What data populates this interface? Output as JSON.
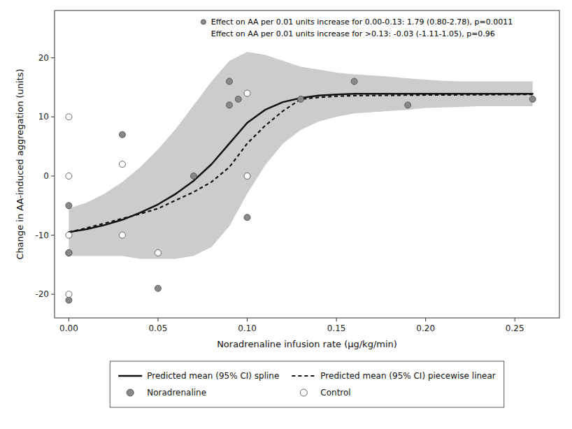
{
  "chart_data": {
    "type": "line",
    "x_label": "Noradrenaline infusion rate (μg/kg/min)",
    "y_label": "Change in AA-induced aggregation (units)",
    "annotations": [
      "Effect on AA per 0.01 units increase for 0.00-0.13: 1.79 (0.80-2.78), p=0.0011",
      "Effect on AA per 0.01 units increase for >0.13: -0.03 (-1.11-1.05), p=0.96"
    ],
    "xlim": [
      -0.008,
      0.275
    ],
    "ylim": [
      -24,
      28
    ],
    "xticks": [
      {
        "value": 0.0,
        "label": "0.00"
      },
      0.05,
      {
        "value": 0.1,
        "label": "0.10"
      },
      0.15,
      {
        "value": 0.2,
        "label": "0.20"
      },
      0.25
    ],
    "yticks": [
      -20,
      -10,
      0,
      10,
      20
    ],
    "grid": false,
    "legend": "bottom",
    "series": [
      {
        "type": "area",
        "color": "#cccccc",
        "x": [
          0.0,
          0.01,
          0.02,
          0.03,
          0.04,
          0.05,
          0.06,
          0.07,
          0.08,
          0.09,
          0.1,
          0.11,
          0.12,
          0.13,
          0.14,
          0.15,
          0.16,
          0.17,
          0.18,
          0.19,
          0.2,
          0.21,
          0.22,
          0.23,
          0.24,
          0.25,
          0.26
        ],
        "lower": [
          -13.5,
          -13.5,
          -13.5,
          -13.5,
          -14.0,
          -14.0,
          -14.0,
          -13.5,
          -12.0,
          -8.5,
          -3.0,
          1.8,
          5.5,
          7.8,
          9.2,
          10.0,
          10.6,
          10.8,
          11.0,
          11.2,
          11.5,
          11.6,
          11.7,
          11.8,
          11.8,
          11.8,
          11.8
        ],
        "upper": [
          -5.5,
          -4.5,
          -3.0,
          -1.0,
          1.5,
          4.5,
          8.0,
          12.0,
          16.0,
          19.5,
          21.0,
          20.5,
          19.5,
          18.5,
          18.0,
          17.5,
          17.2,
          17.0,
          16.8,
          16.5,
          16.3,
          16.1,
          16.0,
          16.0,
          16.0,
          16.0,
          16.0
        ]
      },
      {
        "name": "Predicted mean (95% CI) spline",
        "type": "line",
        "line_style": "solid",
        "color": "#111111",
        "x": [
          0.0,
          0.01,
          0.02,
          0.03,
          0.04,
          0.05,
          0.06,
          0.07,
          0.08,
          0.09,
          0.1,
          0.11,
          0.12,
          0.13,
          0.14,
          0.15,
          0.16,
          0.17,
          0.18,
          0.19,
          0.2,
          0.21,
          0.22,
          0.23,
          0.24,
          0.25,
          0.26
        ],
        "values": [
          -9.5,
          -9.0,
          -8.3,
          -7.4,
          -6.2,
          -4.8,
          -3.0,
          -0.8,
          2.0,
          5.5,
          9.0,
          11.2,
          12.5,
          13.2,
          13.6,
          13.8,
          13.9,
          13.9,
          13.9,
          13.9,
          13.9,
          13.9,
          13.9,
          13.9,
          13.9,
          13.9,
          13.9
        ]
      },
      {
        "name": "Predicted mean (95% CI) piecewise linear",
        "type": "line",
        "line_style": "dashed",
        "color": "#111111",
        "x": [
          0.0,
          0.01,
          0.02,
          0.03,
          0.04,
          0.05,
          0.06,
          0.07,
          0.08,
          0.09,
          0.1,
          0.11,
          0.12,
          0.13,
          0.14,
          0.15,
          0.16,
          0.2,
          0.26
        ],
        "values": [
          -9.5,
          -8.8,
          -8.0,
          -7.2,
          -6.4,
          -5.5,
          -4.1,
          -2.7,
          -1.0,
          1.5,
          5.5,
          8.5,
          11.0,
          13.0,
          13.3,
          13.5,
          13.6,
          13.7,
          13.8
        ]
      },
      {
        "name": "Noradrenaline",
        "type": "scatter",
        "marker": "circle",
        "color": "#888888",
        "x": [
          0.0,
          0.0,
          0.0,
          0.0,
          0.03,
          0.05,
          0.07,
          0.09,
          0.09,
          0.095,
          0.1,
          0.13,
          0.16,
          0.19,
          0.26
        ],
        "values": [
          -21,
          -13,
          -13,
          -5,
          7,
          -19,
          0,
          16,
          12,
          13,
          -7,
          13,
          16,
          12,
          13
        ]
      },
      {
        "name": "Control",
        "type": "scatter",
        "marker": "circle",
        "color": "#ffffff",
        "x": [
          0.0,
          0.0,
          0.0,
          0.0,
          0.03,
          0.03,
          0.05,
          0.1,
          0.1
        ],
        "values": [
          10,
          0,
          -10,
          -20,
          2,
          -10,
          -13,
          14,
          0
        ]
      }
    ]
  }
}
